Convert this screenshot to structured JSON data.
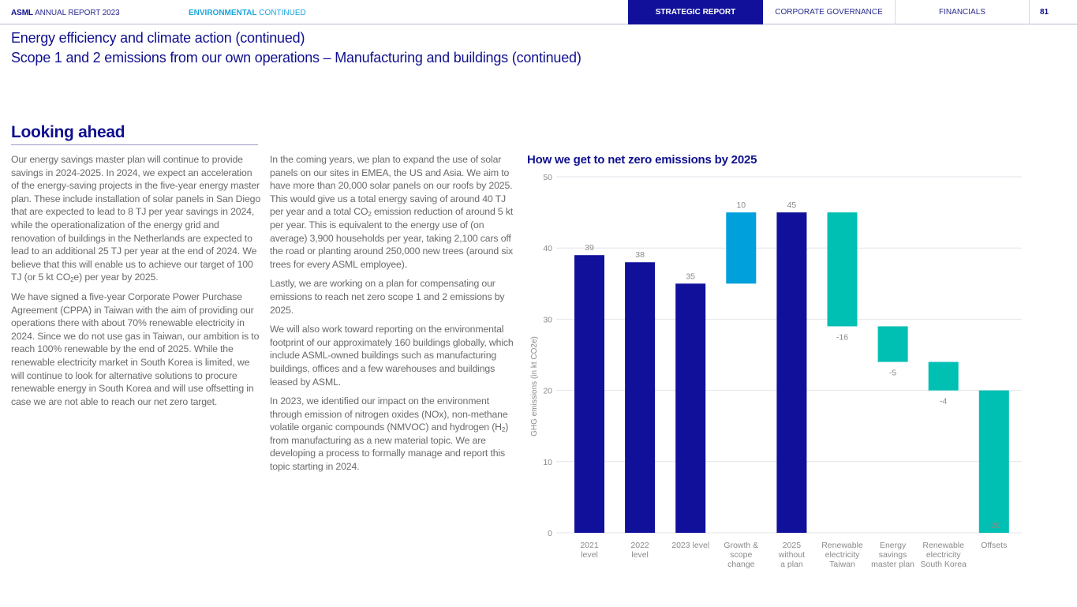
{
  "header": {
    "brand_bold": "ASML",
    "brand_rest": " ANNUAL REPORT 2023",
    "section_bold": "ENVIRONMENTAL",
    "section_rest": " CONTINUED",
    "nav": [
      {
        "label": "STRATEGIC REPORT",
        "active": true
      },
      {
        "label": "CORPORATE GOVERNANCE",
        "active": false
      },
      {
        "label": "FINANCIALS",
        "active": false
      }
    ],
    "page_number": "81"
  },
  "page": {
    "title": "Energy efficiency and climate action (continued)",
    "subtitle": "Scope 1 and 2 emissions from our own operations – Manufacturing and buildings (continued)",
    "section_heading": "Looking ahead"
  },
  "body": {
    "col1": {
      "p1_a": "Our energy savings master plan will continue to provide savings in 2024-2025. In 2024, we expect an acceleration of the energy-saving projects in the five-year energy master plan. These include installation of solar panels in San Diego that are expected to lead to 8 TJ per year savings in 2024, while the operationalization of the energy grid and renovation of buildings in the Netherlands are expected to lead to an additional 25 TJ per year at the end of 2024. We believe that this will enable us to achieve our target of 100 TJ (or 5 kt CO",
      "p1_sub": "2",
      "p1_b": "e) per year by 2025.",
      "p2": "We have signed a five-year Corporate Power Purchase Agreement (CPPA) in Taiwan with the aim of providing our operations there with about 70% renewable electricity in 2024. Since we do not use gas in Taiwan, our ambition is to reach 100% renewable by the end of 2025. While the renewable electricity market in South Korea is limited, we will continue to look for alternative solutions to procure renewable energy in South Korea and will use offsetting in case we are not able to reach our net zero target."
    },
    "col2": {
      "p1_a": "In the coming years, we plan to expand the use of solar panels on our sites in EMEA, the US and Asia. We aim to have more than 20,000 solar panels on our roofs by 2025. This would give us a total energy saving of around 40 TJ per year and a total CO",
      "p1_sub": "2",
      "p1_b": " emission reduction of around 5 kt per year. This is equivalent to the energy use of (on average) 3,900 households per year, taking 2,100 cars off the road or planting around 250,000 new trees (around six trees for every ASML employee).",
      "p2": "Lastly, we are working on a plan for compensating our emissions to reach net zero scope 1 and 2 emissions by 2025.",
      "p3": "We will also work toward reporting on the environmental footprint of our approximately 160 buildings globally, which include ASML-owned buildings such as manufacturing buildings, offices and a few warehouses and buildings leased by ASML.",
      "p4_a": "In 2023, we identified our impact on the environment through emission of nitrogen oxides (NOx), non-methane volatile organic compounds (NMVOC) and hydrogen (H",
      "p4_sub": "2",
      "p4_b": ") from manufacturing as a new material topic. We are developing a process to formally manage and report this topic starting in 2024."
    }
  },
  "chart_data": {
    "type": "bar",
    "subtype": "waterfall",
    "title": "How we get to net zero emissions by 2025",
    "xlabel": "",
    "ylabel": "GHG emissions (in kt CO2e)",
    "ylim": [
      0,
      50
    ],
    "yticks": [
      0,
      10,
      20,
      30,
      40,
      50
    ],
    "grid": true,
    "legend": "none",
    "colors": {
      "total": "#10109a",
      "increase": "#00a0dc",
      "decrease": "#00bfb3"
    },
    "categories": [
      "2021 level",
      "2022 level",
      "2023 level",
      "Growth & scope change",
      "2025 without a plan",
      "Renewable electricity Taiwan",
      "Energy savings master plan",
      "Renewable electricity South Korea",
      "Offsets"
    ],
    "category_lines": [
      [
        "2021",
        "level"
      ],
      [
        "2022",
        "level"
      ],
      [
        "2023 level"
      ],
      [
        "Growth &",
        "scope",
        "change"
      ],
      [
        "2025",
        "without",
        "a plan"
      ],
      [
        "Renewable",
        "electricity",
        "Taiwan"
      ],
      [
        "Energy",
        "savings",
        "master plan"
      ],
      [
        "Renewable",
        "electricity",
        "South Korea"
      ],
      [
        "Offsets"
      ]
    ],
    "bars": [
      {
        "kind": "total",
        "start": 0,
        "end": 39,
        "label": "39"
      },
      {
        "kind": "total",
        "start": 0,
        "end": 38,
        "label": "38"
      },
      {
        "kind": "total",
        "start": 0,
        "end": 35,
        "label": "35"
      },
      {
        "kind": "increase",
        "start": 35,
        "end": 45,
        "label": "10"
      },
      {
        "kind": "total",
        "start": 0,
        "end": 45,
        "label": "45"
      },
      {
        "kind": "decrease",
        "start": 45,
        "end": 29,
        "label": "-16"
      },
      {
        "kind": "decrease",
        "start": 29,
        "end": 24,
        "label": "-5"
      },
      {
        "kind": "decrease",
        "start": 24,
        "end": 20,
        "label": "-4"
      },
      {
        "kind": "decrease",
        "start": 20,
        "end": 0,
        "label": "-20"
      }
    ],
    "values": [
      39,
      38,
      35,
      10,
      45,
      -16,
      -5,
      -4,
      -20
    ]
  }
}
